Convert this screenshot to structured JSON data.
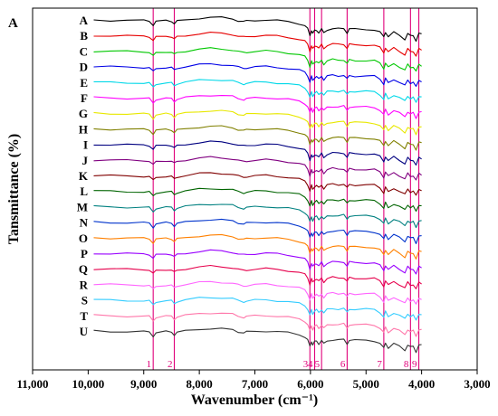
{
  "chart_data": {
    "type": "line",
    "panel_label": "A",
    "title": "",
    "xlabel": "Wavenumber (cm⁻¹)",
    "ylabel": "Tansmittance (%)",
    "xlim": [
      11000,
      3000
    ],
    "x_reversed": true,
    "xticks": [
      11000,
      10000,
      9000,
      8000,
      7000,
      6000,
      5000,
      4000,
      3000
    ],
    "xtick_labels": [
      "11,000",
      "10,000",
      "9,000",
      "8,000",
      "7,000",
      "6,000",
      "5,000",
      "4,000",
      "3,000"
    ],
    "y_ticks_shown": false,
    "grid": false,
    "legend": "none",
    "reference_lines": [
      {
        "label": "1",
        "x": 8830
      },
      {
        "label": "2",
        "x": 8450
      },
      {
        "label": "3",
        "x": 6010
      },
      {
        "label": "4",
        "x": 5925
      },
      {
        "label": "5",
        "x": 5800
      },
      {
        "label": "6",
        "x": 5340
      },
      {
        "label": "7",
        "x": 4680
      },
      {
        "label": "8",
        "x": 4200
      },
      {
        "label": "9",
        "x": 4050
      }
    ],
    "reference_line_color": "#e0007a",
    "series": [
      {
        "name": "A",
        "color": "#000000"
      },
      {
        "name": "B",
        "color": "#e60000"
      },
      {
        "name": "C",
        "color": "#00c800"
      },
      {
        "name": "D",
        "color": "#0000e6"
      },
      {
        "name": "E",
        "color": "#00d8e8"
      },
      {
        "name": "F",
        "color": "#ff00ff"
      },
      {
        "name": "G",
        "color": "#e8e800"
      },
      {
        "name": "H",
        "color": "#808000"
      },
      {
        "name": "I",
        "color": "#000080"
      },
      {
        "name": "J",
        "color": "#800080"
      },
      {
        "name": "K",
        "color": "#800000"
      },
      {
        "name": "L",
        "color": "#006400"
      },
      {
        "name": "M",
        "color": "#008080"
      },
      {
        "name": "N",
        "color": "#0033cc"
      },
      {
        "name": "O",
        "color": "#ff8000"
      },
      {
        "name": "P",
        "color": "#9900ff"
      },
      {
        "name": "Q",
        "color": "#e6004c"
      },
      {
        "name": "R",
        "color": "#ff66ff"
      },
      {
        "name": "S",
        "color": "#33ccff"
      },
      {
        "name": "T",
        "color": "#ff77aa"
      },
      {
        "name": "U",
        "color": "#333333"
      }
    ],
    "spectrum_shape": {
      "x": [
        9900,
        9600,
        9300,
        9000,
        8900,
        8830,
        8780,
        8600,
        8500,
        8450,
        8400,
        8250,
        8000,
        7800,
        7600,
        7400,
        7300,
        7200,
        7150,
        7000,
        6800,
        6600,
        6400,
        6200,
        6100,
        6050,
        6010,
        5980,
        5960,
        5925,
        5890,
        5850,
        5800,
        5760,
        5700,
        5600,
        5500,
        5400,
        5340,
        5300,
        5200,
        5000,
        4850,
        4750,
        4680,
        4650,
        4600,
        4500,
        4400,
        4300,
        4250,
        4200,
        4150,
        4100,
        4050,
        4000
      ],
      "y": [
        0.0,
        0.1,
        0.15,
        0.2,
        0.3,
        1.4,
        0.5,
        0.2,
        0.3,
        1.0,
        0.4,
        0.0,
        -0.5,
        -0.7,
        -0.6,
        -0.3,
        0.2,
        0.5,
        0.3,
        0.1,
        0.0,
        0.2,
        0.5,
        1.0,
        1.6,
        2.5,
        4.3,
        2.8,
        3.8,
        3.0,
        2.8,
        3.5,
        2.6,
        3.6,
        2.7,
        2.4,
        2.5,
        2.4,
        3.5,
        2.5,
        2.6,
        2.6,
        2.7,
        3.4,
        4.8,
        3.3,
        4.6,
        3.5,
        4.3,
        5.3,
        3.8,
        4.5,
        4.3,
        5.7,
        3.8,
        4.0
      ]
    }
  }
}
